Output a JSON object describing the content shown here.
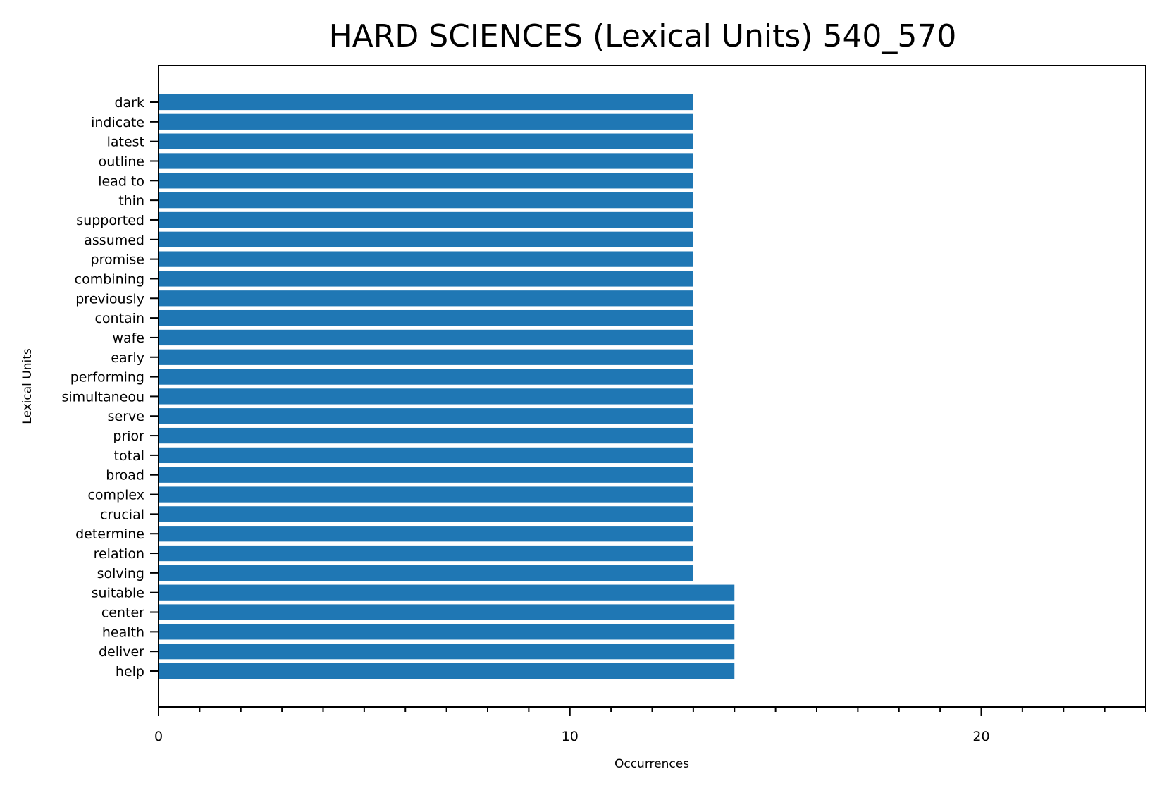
{
  "chart_data": {
    "type": "bar",
    "orientation": "horizontal",
    "title": "HARD SCIENCES (Lexical Units) 540_570",
    "xlabel": "Occurrences",
    "ylabel": "Lexical Units",
    "xlim": [
      0,
      24
    ],
    "x_major_ticks": [
      0,
      10,
      20
    ],
    "x_minor_tick_step": 1,
    "grid": false,
    "bar_color": "#1f77b4",
    "categories": [
      "dark",
      "indicate",
      "latest",
      "outline",
      "lead to",
      "thin",
      "supported",
      "assumed",
      "promise",
      "combining",
      "previously",
      "contain",
      "wafe",
      "early",
      "performing",
      "simultaneou",
      "serve",
      "prior",
      "total",
      "broad",
      "complex",
      "crucial",
      "determine",
      "relation",
      "solving",
      "suitable",
      "center",
      "health",
      "deliver",
      "help"
    ],
    "values": [
      13,
      13,
      13,
      13,
      13,
      13,
      13,
      13,
      13,
      13,
      13,
      13,
      13,
      13,
      13,
      13,
      13,
      13,
      13,
      13,
      13,
      13,
      13,
      13,
      13,
      14,
      14,
      14,
      14,
      14
    ]
  }
}
